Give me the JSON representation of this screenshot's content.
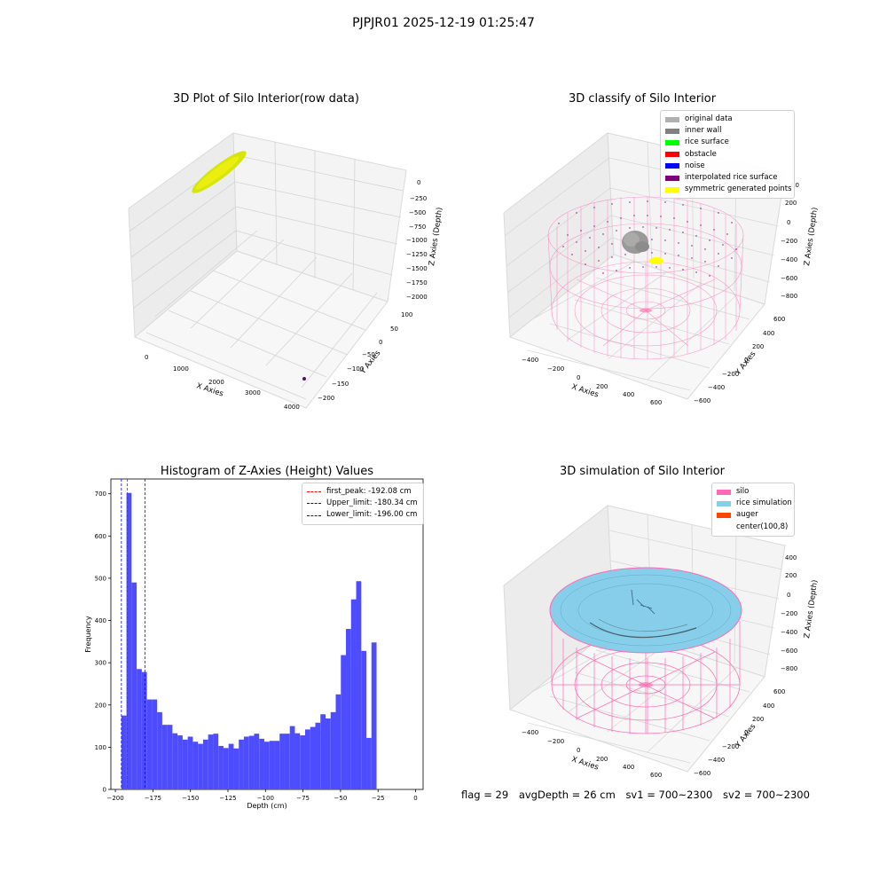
{
  "suptitle": "PJPJR01 2025-12-19 01:25:47",
  "panels": {
    "raw": {
      "title": "3D Plot of Silo Interior(row data)",
      "xlabel": "X Axies",
      "ylabel": "Y Axies",
      "zlabel": "Z Axies (Depth)",
      "xticks": [
        "0",
        "1000",
        "2000",
        "3000",
        "4000"
      ],
      "yticks": [
        "100",
        "50",
        "0",
        "−50",
        "−100",
        "−150",
        "−200"
      ],
      "zticks": [
        "0",
        "−250",
        "−500",
        "−750",
        "−1000",
        "−1250",
        "−1500",
        "−1750",
        "−2000"
      ],
      "colors": {
        "cloud": "#d4e800",
        "outlier": "#5a0f5a"
      }
    },
    "classify": {
      "title": "3D classify of Silo Interior",
      "xlabel": "X Axies",
      "ylabel": "Y Axies",
      "zlabel": "Z Axies (Depth)",
      "xticks": [
        "−400",
        "−200",
        "0",
        "200",
        "400",
        "600"
      ],
      "yticks": [
        "600",
        "400",
        "200",
        "0",
        "−200",
        "−400",
        "−600"
      ],
      "zticks": [
        "200",
        "0",
        "−200",
        "−400",
        "−600",
        "−800"
      ],
      "ztick_top": "00",
      "legend": [
        {
          "label": "original data",
          "color": "#b0b0b0"
        },
        {
          "label": "inner wall",
          "color": "#808080"
        },
        {
          "label": "rice surface",
          "color": "#00ff00"
        },
        {
          "label": "obstacle",
          "color": "#ff0000"
        },
        {
          "label": "noise",
          "color": "#0000ff"
        },
        {
          "label": "interpolated rice surface",
          "color": "#800080"
        },
        {
          "label": "symmetric generated points",
          "color": "#ffff00"
        }
      ]
    },
    "hist": {
      "title": "Histogram of Z-Axies (Height) Values",
      "xlabel": "Depth (cm)",
      "ylabel": "Frequency",
      "legend": [
        {
          "label": "first_peak: -192.08 cm",
          "color": "#ff0000"
        },
        {
          "label": "Upper_limit: -180.34 cm",
          "color": "#0000ff"
        },
        {
          "label": "Lower_limit: -196.00 cm",
          "color": "#0000ff"
        }
      ]
    },
    "sim": {
      "title": "3D simulation of Silo Interior",
      "xlabel": "X Axies",
      "ylabel": "Y Axies",
      "zlabel": "Z Axies (Depth)",
      "xticks": [
        "−400",
        "−200",
        "0",
        "200",
        "400",
        "600"
      ],
      "yticks": [
        "600",
        "400",
        "200",
        "0",
        "−200",
        "−400",
        "−600"
      ],
      "zticks": [
        "400",
        "200",
        "0",
        "−200",
        "−400",
        "−600",
        "−800"
      ],
      "legend": [
        {
          "label": "silo",
          "color": "#ff69b4"
        },
        {
          "label": "rice simulation",
          "color": "#87ceeb"
        },
        {
          "label": "auger",
          "color": "#ff4500"
        },
        {
          "label": "center(100,8)",
          "color": ""
        }
      ]
    }
  },
  "chart_data": [
    {
      "type": "bar",
      "title": "Histogram of Z-Axies (Height) Values",
      "xlabel": "Depth (cm)",
      "ylabel": "Frequency",
      "bin_start": -196,
      "bin_width": 3.4,
      "values": [
        175,
        702,
        490,
        285,
        278,
        213,
        213,
        183,
        153,
        153,
        133,
        128,
        118,
        125,
        113,
        108,
        118,
        130,
        132,
        103,
        98,
        108,
        97,
        118,
        125,
        127,
        132,
        120,
        113,
        115,
        115,
        132,
        132,
        150,
        133,
        128,
        142,
        148,
        158,
        178,
        168,
        183,
        225,
        318,
        380,
        450,
        493,
        328,
        122,
        348
      ],
      "xlim": [
        -203,
        5
      ],
      "ylim": [
        0,
        735
      ],
      "xticks": [
        -200,
        -175,
        -150,
        -125,
        -100,
        -75,
        -50,
        -25,
        0
      ],
      "yticks": [
        0,
        100,
        200,
        300,
        400,
        500,
        600,
        700
      ],
      "vlines": [
        {
          "label": "first_peak: -192.08 cm",
          "x": -192.08,
          "color": "#ff0000"
        },
        {
          "label": "Upper_limit: -180.34 cm",
          "x": -180.34,
          "color": "#0000ff"
        },
        {
          "label": "Lower_limit: -196.00 cm",
          "x": -196.0,
          "color": "#0000ff"
        }
      ],
      "bar_color": "#4d4dff",
      "legend_position": "top-right"
    }
  ],
  "status": {
    "flag": "flag = 29",
    "avg": "avgDepth = 26 cm",
    "sv1": "sv1 = 700~2300",
    "sv2": "sv2 = 700~2300"
  }
}
